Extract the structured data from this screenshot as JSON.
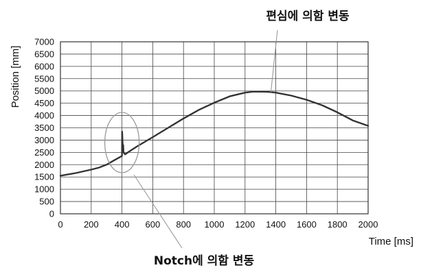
{
  "chart_data": {
    "type": "line",
    "xlabel": "Time [ms]",
    "ylabel": "Position [mm]",
    "xlim": [
      0,
      2000
    ],
    "ylim": [
      0,
      7000
    ],
    "xticks": [
      0,
      200,
      400,
      600,
      800,
      1000,
      1200,
      1400,
      1600,
      1800,
      2000
    ],
    "yticks": [
      0,
      500,
      1000,
      1500,
      2000,
      2500,
      3000,
      3500,
      4000,
      4500,
      5000,
      5500,
      6000,
      6500,
      7000
    ],
    "grid": true,
    "series": [
      {
        "color": "#333333",
        "x": [
          0,
          100,
          200,
          250,
          300,
          350,
          390,
          400,
          401,
          402,
          405,
          408,
          410,
          420,
          450,
          500,
          600,
          700,
          800,
          900,
          1000,
          1100,
          1200,
          1250,
          1300,
          1350,
          1400,
          1500,
          1600,
          1700,
          1800,
          1900,
          2000
        ],
        "y": [
          1550,
          1660,
          1800,
          1880,
          2000,
          2180,
          2320,
          2350,
          3350,
          3250,
          2700,
          2800,
          2500,
          2420,
          2550,
          2750,
          3120,
          3500,
          3880,
          4230,
          4520,
          4780,
          4930,
          4970,
          4970,
          4960,
          4930,
          4810,
          4640,
          4420,
          4130,
          3800,
          3580
        ]
      }
    ],
    "annotations": [
      {
        "text": "편심에 의함 변동",
        "target": [
          1350,
          4950
        ]
      },
      {
        "text": "Notch에 의함 변동",
        "target": [
          400,
          2900
        ]
      }
    ]
  }
}
